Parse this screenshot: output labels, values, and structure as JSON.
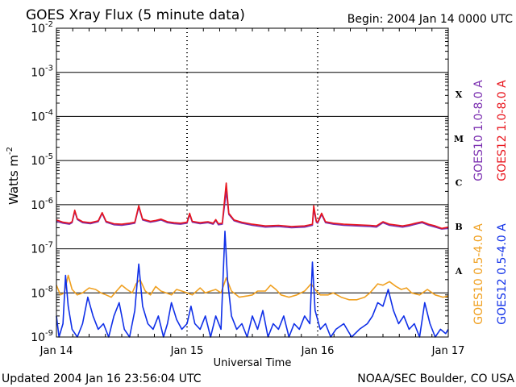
{
  "chart_data": {
    "type": "line",
    "title": "GOES Xray Flux (5 minute data)",
    "begin": "Begin:  2004 Jan 14 0000 UTC",
    "xlabel": "Universal Time",
    "ylabel_base": "Watts m",
    "ylabel_exp": "-2",
    "updated": "Updated 2004 Jan 16 23:56:04 UTC",
    "credit": "NOAA/SEC Boulder, CO USA",
    "x_range_days": [
      0,
      3
    ],
    "x_ticks": [
      {
        "day": 0,
        "label": "Jan 14"
      },
      {
        "day": 1,
        "label": "Jan 15"
      },
      {
        "day": 2,
        "label": "Jan 16"
      },
      {
        "day": 3,
        "label": "Jan 17"
      }
    ],
    "y_scale": "log",
    "y_range_exp": [
      -9,
      -2
    ],
    "y_ticks": [
      {
        "exp": -2,
        "base": "10",
        "sup": "-2"
      },
      {
        "exp": -3,
        "base": "10",
        "sup": "-3"
      },
      {
        "exp": -4,
        "base": "10",
        "sup": "-4"
      },
      {
        "exp": -5,
        "base": "10",
        "sup": "-5"
      },
      {
        "exp": -6,
        "base": "10",
        "sup": "-6"
      },
      {
        "exp": -7,
        "base": "10",
        "sup": "-7"
      },
      {
        "exp": -8,
        "base": "10",
        "sup": "-8"
      },
      {
        "exp": -9,
        "base": "10",
        "sup": "-9"
      }
    ],
    "flare_classes": [
      {
        "label": "X",
        "exp": -3.5
      },
      {
        "label": "M",
        "exp": -4.5
      },
      {
        "label": "C",
        "exp": -5.5
      },
      {
        "label": "B",
        "exp": -6.5
      },
      {
        "label": "A",
        "exp": -7.5
      }
    ],
    "grid": true,
    "series": [
      {
        "name": "GOES10 1.0-8.0 A",
        "color": "#7b2fb0",
        "points": [
          [
            0.0,
            4.2e-07
          ],
          [
            0.05,
            3.8e-07
          ],
          [
            0.1,
            3.6e-07
          ],
          [
            0.12,
            3.9e-07
          ],
          [
            0.14,
            7e-07
          ],
          [
            0.16,
            4.6e-07
          ],
          [
            0.2,
            3.9e-07
          ],
          [
            0.26,
            3.7e-07
          ],
          [
            0.32,
            4.1e-07
          ],
          [
            0.35,
            6.3e-07
          ],
          [
            0.38,
            4e-07
          ],
          [
            0.44,
            3.5e-07
          ],
          [
            0.5,
            3.4e-07
          ],
          [
            0.56,
            3.6e-07
          ],
          [
            0.6,
            3.8e-07
          ],
          [
            0.63,
            8.8e-07
          ],
          [
            0.66,
            4.5e-07
          ],
          [
            0.72,
            4e-07
          ],
          [
            0.76,
            4.2e-07
          ],
          [
            0.8,
            4.5e-07
          ],
          [
            0.85,
            3.9e-07
          ],
          [
            0.9,
            3.7e-07
          ],
          [
            0.95,
            3.6e-07
          ],
          [
            1.0,
            3.8e-07
          ],
          [
            1.02,
            6e-07
          ],
          [
            1.04,
            4e-07
          ],
          [
            1.1,
            3.7e-07
          ],
          [
            1.16,
            3.9e-07
          ],
          [
            1.2,
            3.6e-07
          ],
          [
            1.22,
            4.4e-07
          ],
          [
            1.24,
            3.5e-07
          ],
          [
            1.27,
            3.6e-07
          ],
          [
            1.3,
            2e-06
          ],
          [
            1.32,
            6e-07
          ],
          [
            1.36,
            4.3e-07
          ],
          [
            1.42,
            3.8e-07
          ],
          [
            1.5,
            3.4e-07
          ],
          [
            1.6,
            3.1e-07
          ],
          [
            1.7,
            3.2e-07
          ],
          [
            1.8,
            3e-07
          ],
          [
            1.9,
            3.1e-07
          ],
          [
            1.96,
            3.4e-07
          ],
          [
            1.97,
            8e-07
          ],
          [
            1.99,
            4e-07
          ],
          [
            2.0,
            3.8e-07
          ],
          [
            2.03,
            6e-07
          ],
          [
            2.06,
            3.9e-07
          ],
          [
            2.12,
            3.6e-07
          ],
          [
            2.2,
            3.4e-07
          ],
          [
            2.3,
            3.3e-07
          ],
          [
            2.4,
            3.2e-07
          ],
          [
            2.45,
            3.1e-07
          ],
          [
            2.5,
            3.9e-07
          ],
          [
            2.55,
            3.4e-07
          ],
          [
            2.65,
            3.1e-07
          ],
          [
            2.7,
            3.3e-07
          ],
          [
            2.75,
            3.6e-07
          ],
          [
            2.8,
            3.9e-07
          ],
          [
            2.85,
            3.4e-07
          ],
          [
            2.9,
            3.1e-07
          ],
          [
            2.95,
            2.8e-07
          ],
          [
            3.0,
            2.9e-07
          ]
        ]
      },
      {
        "name": "GOES12 1.0-8.0 A",
        "color": "#e8141c",
        "points": [
          [
            0.0,
            4.5e-07
          ],
          [
            0.05,
            4e-07
          ],
          [
            0.1,
            3.8e-07
          ],
          [
            0.12,
            4.1e-07
          ],
          [
            0.14,
            7.5e-07
          ],
          [
            0.16,
            4.8e-07
          ],
          [
            0.2,
            4.1e-07
          ],
          [
            0.26,
            3.9e-07
          ],
          [
            0.32,
            4.3e-07
          ],
          [
            0.35,
            6.6e-07
          ],
          [
            0.38,
            4.2e-07
          ],
          [
            0.44,
            3.7e-07
          ],
          [
            0.5,
            3.6e-07
          ],
          [
            0.56,
            3.8e-07
          ],
          [
            0.6,
            4e-07
          ],
          [
            0.63,
            9.5e-07
          ],
          [
            0.66,
            4.7e-07
          ],
          [
            0.72,
            4.2e-07
          ],
          [
            0.76,
            4.4e-07
          ],
          [
            0.8,
            4.7e-07
          ],
          [
            0.85,
            4.1e-07
          ],
          [
            0.9,
            3.9e-07
          ],
          [
            0.95,
            3.8e-07
          ],
          [
            1.0,
            4e-07
          ],
          [
            1.02,
            6.4e-07
          ],
          [
            1.04,
            4.2e-07
          ],
          [
            1.1,
            3.9e-07
          ],
          [
            1.16,
            4.1e-07
          ],
          [
            1.2,
            3.8e-07
          ],
          [
            1.22,
            4.6e-07
          ],
          [
            1.24,
            3.7e-07
          ],
          [
            1.27,
            3.8e-07
          ],
          [
            1.3,
            3.1e-06
          ],
          [
            1.32,
            6.4e-07
          ],
          [
            1.36,
            4.5e-07
          ],
          [
            1.42,
            4e-07
          ],
          [
            1.5,
            3.6e-07
          ],
          [
            1.6,
            3.3e-07
          ],
          [
            1.7,
            3.4e-07
          ],
          [
            1.8,
            3.2e-07
          ],
          [
            1.9,
            3.3e-07
          ],
          [
            1.96,
            3.6e-07
          ],
          [
            1.97,
            9.5e-07
          ],
          [
            1.99,
            4.2e-07
          ],
          [
            2.0,
            4e-07
          ],
          [
            2.03,
            6.4e-07
          ],
          [
            2.06,
            4.1e-07
          ],
          [
            2.12,
            3.8e-07
          ],
          [
            2.2,
            3.6e-07
          ],
          [
            2.3,
            3.5e-07
          ],
          [
            2.4,
            3.4e-07
          ],
          [
            2.45,
            3.3e-07
          ],
          [
            2.5,
            4.1e-07
          ],
          [
            2.55,
            3.6e-07
          ],
          [
            2.65,
            3.3e-07
          ],
          [
            2.7,
            3.5e-07
          ],
          [
            2.75,
            3.8e-07
          ],
          [
            2.8,
            4.1e-07
          ],
          [
            2.85,
            3.6e-07
          ],
          [
            2.9,
            3.3e-07
          ],
          [
            2.95,
            2.9e-07
          ],
          [
            3.0,
            3.1e-07
          ]
        ]
      },
      {
        "name": "GOES10 0.5-4.0 A",
        "color": "#f0a020",
        "points": [
          [
            0.0,
            1.5e-08
          ],
          [
            0.03,
            9e-09
          ],
          [
            0.06,
            1e-08
          ],
          [
            0.09,
            2.5e-08
          ],
          [
            0.12,
            1.2e-08
          ],
          [
            0.16,
            9e-09
          ],
          [
            0.2,
            1e-08
          ],
          [
            0.25,
            1.3e-08
          ],
          [
            0.3,
            1.2e-08
          ],
          [
            0.34,
            1e-08
          ],
          [
            0.38,
            9e-09
          ],
          [
            0.42,
            8e-09
          ],
          [
            0.46,
            1.1e-08
          ],
          [
            0.5,
            1.5e-08
          ],
          [
            0.54,
            1.2e-08
          ],
          [
            0.58,
            1e-08
          ],
          [
            0.61,
            1.6e-08
          ],
          [
            0.64,
            2e-08
          ],
          [
            0.68,
            1.1e-08
          ],
          [
            0.72,
            9e-09
          ],
          [
            0.76,
            1.4e-08
          ],
          [
            0.8,
            1.1e-08
          ],
          [
            0.84,
            1e-08
          ],
          [
            0.88,
            9e-09
          ],
          [
            0.92,
            1.2e-08
          ],
          [
            0.96,
            1.1e-08
          ],
          [
            1.0,
            1e-08
          ],
          [
            1.04,
            9e-09
          ],
          [
            1.1,
            1.3e-08
          ],
          [
            1.14,
            1e-08
          ],
          [
            1.18,
            1.1e-08
          ],
          [
            1.22,
            1.2e-08
          ],
          [
            1.26,
            1e-08
          ],
          [
            1.3,
            2.2e-08
          ],
          [
            1.34,
            1.1e-08
          ],
          [
            1.4,
            8e-09
          ],
          [
            1.46,
            8.5e-09
          ],
          [
            1.5,
            9e-09
          ],
          [
            1.54,
            1.1e-08
          ],
          [
            1.6,
            1.1e-08
          ],
          [
            1.64,
            1.5e-08
          ],
          [
            1.68,
            1.2e-08
          ],
          [
            1.72,
            9e-09
          ],
          [
            1.78,
            8e-09
          ],
          [
            1.84,
            9e-09
          ],
          [
            1.9,
            1.1e-08
          ],
          [
            1.95,
            1.6e-08
          ],
          [
            1.98,
            1.2e-08
          ],
          [
            2.02,
            9e-09
          ],
          [
            2.08,
            9e-09
          ],
          [
            2.12,
            1e-08
          ],
          [
            2.18,
            8e-09
          ],
          [
            2.24,
            7e-09
          ],
          [
            2.3,
            7e-09
          ],
          [
            2.36,
            8e-09
          ],
          [
            2.4,
            1e-08
          ],
          [
            2.46,
            1.6e-08
          ],
          [
            2.5,
            1.5e-08
          ],
          [
            2.55,
            1.8e-08
          ],
          [
            2.6,
            1.4e-08
          ],
          [
            2.64,
            1.2e-08
          ],
          [
            2.68,
            1.3e-08
          ],
          [
            2.72,
            1e-08
          ],
          [
            2.78,
            9e-09
          ],
          [
            2.84,
            1.2e-08
          ],
          [
            2.9,
            9e-09
          ],
          [
            2.96,
            8e-09
          ],
          [
            3.0,
            8.5e-09
          ]
        ]
      },
      {
        "name": "GOES12 0.5-4.0 A",
        "color": "#1030e8",
        "points": [
          [
            0.0,
            3e-09
          ],
          [
            0.02,
            1e-09
          ],
          [
            0.05,
            2e-09
          ],
          [
            0.07,
            2.5e-08
          ],
          [
            0.09,
            5e-09
          ],
          [
            0.12,
            1.5e-09
          ],
          [
            0.16,
            1e-09
          ],
          [
            0.2,
            2e-09
          ],
          [
            0.24,
            8e-09
          ],
          [
            0.28,
            3e-09
          ],
          [
            0.32,
            1.5e-09
          ],
          [
            0.36,
            2e-09
          ],
          [
            0.4,
            1e-09
          ],
          [
            0.44,
            3e-09
          ],
          [
            0.48,
            6e-09
          ],
          [
            0.52,
            1.5e-09
          ],
          [
            0.56,
            1e-09
          ],
          [
            0.6,
            4e-09
          ],
          [
            0.63,
            4.5e-08
          ],
          [
            0.66,
            5e-09
          ],
          [
            0.7,
            2e-09
          ],
          [
            0.74,
            1.5e-09
          ],
          [
            0.78,
            3e-09
          ],
          [
            0.82,
            1e-09
          ],
          [
            0.85,
            2e-09
          ],
          [
            0.88,
            6e-09
          ],
          [
            0.92,
            2.5e-09
          ],
          [
            0.96,
            1.5e-09
          ],
          [
            1.0,
            2e-09
          ],
          [
            1.03,
            5e-09
          ],
          [
            1.06,
            2e-09
          ],
          [
            1.1,
            1.5e-09
          ],
          [
            1.14,
            3e-09
          ],
          [
            1.18,
            1e-09
          ],
          [
            1.22,
            3e-09
          ],
          [
            1.26,
            1.5e-09
          ],
          [
            1.29,
            2.5e-07
          ],
          [
            1.31,
            2e-08
          ],
          [
            1.34,
            3e-09
          ],
          [
            1.38,
            1.5e-09
          ],
          [
            1.42,
            2e-09
          ],
          [
            1.46,
            1e-09
          ],
          [
            1.5,
            3e-09
          ],
          [
            1.54,
            1.5e-09
          ],
          [
            1.58,
            4e-09
          ],
          [
            1.62,
            1e-09
          ],
          [
            1.66,
            2e-09
          ],
          [
            1.7,
            1.5e-09
          ],
          [
            1.74,
            3e-09
          ],
          [
            1.78,
            1e-09
          ],
          [
            1.82,
            2e-09
          ],
          [
            1.86,
            1.5e-09
          ],
          [
            1.9,
            3e-09
          ],
          [
            1.94,
            2e-09
          ],
          [
            1.96,
            5e-08
          ],
          [
            1.98,
            4e-09
          ],
          [
            2.02,
            1.5e-09
          ],
          [
            2.06,
            2e-09
          ],
          [
            2.1,
            1e-09
          ],
          [
            2.14,
            1.5e-09
          ],
          [
            2.2,
            2e-09
          ],
          [
            2.26,
            1e-09
          ],
          [
            2.32,
            1.5e-09
          ],
          [
            2.38,
            2e-09
          ],
          [
            2.42,
            3e-09
          ],
          [
            2.46,
            6e-09
          ],
          [
            2.5,
            5e-09
          ],
          [
            2.54,
            1.2e-08
          ],
          [
            2.58,
            4e-09
          ],
          [
            2.62,
            2e-09
          ],
          [
            2.66,
            3e-09
          ],
          [
            2.7,
            1.5e-09
          ],
          [
            2.74,
            2e-09
          ],
          [
            2.78,
            1e-09
          ],
          [
            2.82,
            6e-09
          ],
          [
            2.86,
            2e-09
          ],
          [
            2.9,
            1e-09
          ],
          [
            2.94,
            1.5e-09
          ],
          [
            2.98,
            1.2e-09
          ],
          [
            3.0,
            1.5e-09
          ]
        ]
      }
    ],
    "legend_right": [
      {
        "label": "GOES10 1.0-8.0 A",
        "color": "#7b2fb0"
      },
      {
        "label": "GOES12 1.0-8.0 A",
        "color": "#e8141c"
      },
      {
        "label": "GOES10 0.5-4.0 A",
        "color": "#f0a020"
      },
      {
        "label": "GOES12 0.5-4.0 A",
        "color": "#1030e8"
      }
    ]
  }
}
